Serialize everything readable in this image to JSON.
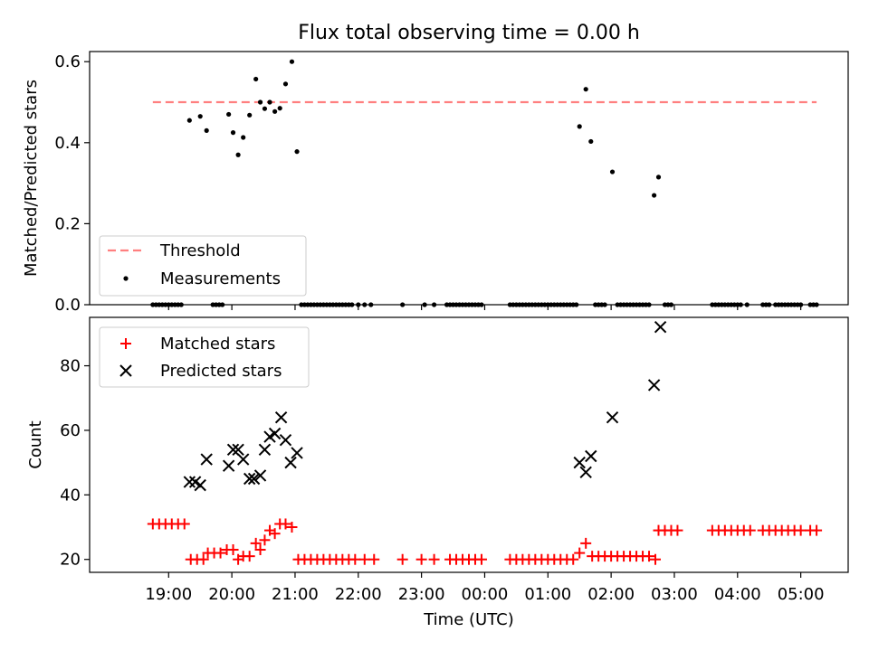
{
  "title": "Flux total observing time = 0.00 h",
  "chart_data": [
    {
      "type": "scatter",
      "ylabel": "Matched/Predicted stars",
      "xlabel": "",
      "x_unit": "hours since 18:00 UTC",
      "xlim": [
        17.75,
        29.75
      ],
      "ylim": [
        0.0,
        0.625
      ],
      "yticks": [
        0.0,
        0.2,
        0.4,
        0.6
      ],
      "ytick_labels": [
        "0.0",
        "0.2",
        "0.4",
        "0.6"
      ],
      "legend": {
        "position": "lower-left",
        "entries": [
          "Threshold",
          "Measurements"
        ]
      },
      "threshold": {
        "name": "Threshold",
        "value": 0.5,
        "x_range": [
          18.75,
          29.25
        ],
        "color": "#ff7f7f"
      },
      "series": [
        {
          "name": "Measurements",
          "color": "#000000",
          "points": [
            [
              18.75,
              0
            ],
            [
              18.8,
              0
            ],
            [
              18.85,
              0
            ],
            [
              18.9,
              0
            ],
            [
              18.95,
              0
            ],
            [
              19.0,
              0
            ],
            [
              19.05,
              0
            ],
            [
              19.1,
              0
            ],
            [
              19.15,
              0
            ],
            [
              19.2,
              0
            ],
            [
              19.33,
              0.455
            ],
            [
              19.5,
              0.465
            ],
            [
              19.6,
              0.43
            ],
            [
              19.7,
              0
            ],
            [
              19.75,
              0
            ],
            [
              19.8,
              0
            ],
            [
              19.85,
              0
            ],
            [
              19.95,
              0.47
            ],
            [
              20.02,
              0.425
            ],
            [
              20.1,
              0.37
            ],
            [
              20.18,
              0.413
            ],
            [
              20.28,
              0.468
            ],
            [
              20.38,
              0.557
            ],
            [
              20.45,
              0.5
            ],
            [
              20.52,
              0.484
            ],
            [
              20.6,
              0.5
            ],
            [
              20.68,
              0.477
            ],
            [
              20.76,
              0.485
            ],
            [
              20.85,
              0.545
            ],
            [
              20.95,
              0.6
            ],
            [
              21.03,
              0.378
            ],
            [
              21.1,
              0
            ],
            [
              21.15,
              0
            ],
            [
              21.2,
              0
            ],
            [
              21.25,
              0
            ],
            [
              21.3,
              0
            ],
            [
              21.35,
              0
            ],
            [
              21.4,
              0
            ],
            [
              21.45,
              0
            ],
            [
              21.5,
              0
            ],
            [
              21.55,
              0
            ],
            [
              21.6,
              0
            ],
            [
              21.65,
              0
            ],
            [
              21.7,
              0
            ],
            [
              21.75,
              0
            ],
            [
              21.8,
              0
            ],
            [
              21.85,
              0
            ],
            [
              21.9,
              0
            ],
            [
              22.0,
              0
            ],
            [
              22.1,
              0
            ],
            [
              22.2,
              0
            ],
            [
              22.7,
              0
            ],
            [
              23.05,
              0
            ],
            [
              23.2,
              0
            ],
            [
              23.4,
              0
            ],
            [
              23.45,
              0
            ],
            [
              23.5,
              0
            ],
            [
              23.55,
              0
            ],
            [
              23.6,
              0
            ],
            [
              23.65,
              0
            ],
            [
              23.7,
              0
            ],
            [
              23.75,
              0
            ],
            [
              23.8,
              0
            ],
            [
              23.85,
              0
            ],
            [
              23.9,
              0
            ],
            [
              23.95,
              0
            ],
            [
              24.4,
              0
            ],
            [
              24.45,
              0
            ],
            [
              24.5,
              0
            ],
            [
              24.55,
              0
            ],
            [
              24.6,
              0
            ],
            [
              24.65,
              0
            ],
            [
              24.7,
              0
            ],
            [
              24.75,
              0
            ],
            [
              24.8,
              0
            ],
            [
              24.85,
              0
            ],
            [
              24.9,
              0
            ],
            [
              24.95,
              0
            ],
            [
              25.0,
              0
            ],
            [
              25.05,
              0
            ],
            [
              25.1,
              0
            ],
            [
              25.15,
              0
            ],
            [
              25.2,
              0
            ],
            [
              25.25,
              0
            ],
            [
              25.3,
              0
            ],
            [
              25.35,
              0
            ],
            [
              25.4,
              0
            ],
            [
              25.45,
              0
            ],
            [
              25.5,
              0.44
            ],
            [
              25.6,
              0.532
            ],
            [
              25.68,
              0.403
            ],
            [
              25.75,
              0
            ],
            [
              25.8,
              0
            ],
            [
              25.85,
              0
            ],
            [
              25.9,
              0
            ],
            [
              26.02,
              0.328
            ],
            [
              26.1,
              0
            ],
            [
              26.15,
              0
            ],
            [
              26.2,
              0
            ],
            [
              26.25,
              0
            ],
            [
              26.3,
              0
            ],
            [
              26.35,
              0
            ],
            [
              26.4,
              0
            ],
            [
              26.45,
              0
            ],
            [
              26.5,
              0
            ],
            [
              26.55,
              0
            ],
            [
              26.6,
              0
            ],
            [
              26.68,
              0.27
            ],
            [
              26.75,
              0.315
            ],
            [
              26.85,
              0
            ],
            [
              26.9,
              0
            ],
            [
              26.95,
              0
            ],
            [
              27.6,
              0
            ],
            [
              27.65,
              0
            ],
            [
              27.7,
              0
            ],
            [
              27.75,
              0
            ],
            [
              27.8,
              0
            ],
            [
              27.85,
              0
            ],
            [
              27.9,
              0
            ],
            [
              27.95,
              0
            ],
            [
              28.0,
              0
            ],
            [
              28.05,
              0
            ],
            [
              28.15,
              0
            ],
            [
              28.4,
              0
            ],
            [
              28.45,
              0
            ],
            [
              28.5,
              0
            ],
            [
              28.6,
              0
            ],
            [
              28.65,
              0
            ],
            [
              28.7,
              0
            ],
            [
              28.75,
              0
            ],
            [
              28.8,
              0
            ],
            [
              28.85,
              0
            ],
            [
              28.9,
              0
            ],
            [
              28.95,
              0
            ],
            [
              29.0,
              0
            ],
            [
              29.15,
              0
            ],
            [
              29.2,
              0
            ],
            [
              29.25,
              0
            ]
          ]
        }
      ]
    },
    {
      "type": "scatter",
      "ylabel": "Count",
      "xlabel": "Time (UTC)",
      "x_unit": "hours since 18:00 UTC",
      "xlim": [
        17.75,
        29.75
      ],
      "ylim": [
        16,
        95
      ],
      "yticks": [
        20,
        40,
        60,
        80
      ],
      "ytick_labels": [
        "20",
        "40",
        "60",
        "80"
      ],
      "xticks": [
        19,
        20,
        21,
        22,
        23,
        24,
        25,
        26,
        27,
        28,
        29
      ],
      "xtick_labels": [
        "19:00",
        "20:00",
        "21:00",
        "22:00",
        "23:00",
        "00:00",
        "01:00",
        "02:00",
        "03:00",
        "04:00",
        "05:00"
      ],
      "legend": {
        "position": "top-left",
        "entries": [
          "Matched stars",
          "Predicted stars"
        ]
      },
      "series": [
        {
          "name": "Matched stars",
          "marker": "plus",
          "color": "#ff0000",
          "points": [
            [
              18.75,
              31
            ],
            [
              18.85,
              31
            ],
            [
              18.95,
              31
            ],
            [
              19.05,
              31
            ],
            [
              19.15,
              31
            ],
            [
              19.25,
              31
            ],
            [
              19.35,
              20
            ],
            [
              19.45,
              20
            ],
            [
              19.55,
              20
            ],
            [
              19.62,
              22
            ],
            [
              19.72,
              22
            ],
            [
              19.82,
              22
            ],
            [
              19.92,
              23
            ],
            [
              20.02,
              23
            ],
            [
              20.1,
              20
            ],
            [
              20.18,
              21
            ],
            [
              20.28,
              21
            ],
            [
              20.38,
              25
            ],
            [
              20.45,
              23
            ],
            [
              20.52,
              26
            ],
            [
              20.6,
              29
            ],
            [
              20.68,
              28
            ],
            [
              20.76,
              31
            ],
            [
              20.85,
              31
            ],
            [
              20.95,
              30
            ],
            [
              21.05,
              20
            ],
            [
              21.15,
              20
            ],
            [
              21.25,
              20
            ],
            [
              21.35,
              20
            ],
            [
              21.45,
              20
            ],
            [
              21.55,
              20
            ],
            [
              21.65,
              20
            ],
            [
              21.75,
              20
            ],
            [
              21.85,
              20
            ],
            [
              21.95,
              20
            ],
            [
              22.1,
              20
            ],
            [
              22.25,
              20
            ],
            [
              22.7,
              20
            ],
            [
              23.0,
              20
            ],
            [
              23.2,
              20
            ],
            [
              23.45,
              20
            ],
            [
              23.55,
              20
            ],
            [
              23.65,
              20
            ],
            [
              23.75,
              20
            ],
            [
              23.85,
              20
            ],
            [
              23.95,
              20
            ],
            [
              24.4,
              20
            ],
            [
              24.5,
              20
            ],
            [
              24.6,
              20
            ],
            [
              24.7,
              20
            ],
            [
              24.8,
              20
            ],
            [
              24.9,
              20
            ],
            [
              25.0,
              20
            ],
            [
              25.1,
              20
            ],
            [
              25.2,
              20
            ],
            [
              25.3,
              20
            ],
            [
              25.4,
              20
            ],
            [
              25.5,
              22
            ],
            [
              25.6,
              25
            ],
            [
              25.7,
              21
            ],
            [
              25.8,
              21
            ],
            [
              25.9,
              21
            ],
            [
              26.0,
              21
            ],
            [
              26.1,
              21
            ],
            [
              26.2,
              21
            ],
            [
              26.3,
              21
            ],
            [
              26.4,
              21
            ],
            [
              26.5,
              21
            ],
            [
              26.6,
              21
            ],
            [
              26.7,
              20
            ],
            [
              26.75,
              29
            ],
            [
              26.85,
              29
            ],
            [
              26.95,
              29
            ],
            [
              27.05,
              29
            ],
            [
              27.6,
              29
            ],
            [
              27.7,
              29
            ],
            [
              27.8,
              29
            ],
            [
              27.9,
              29
            ],
            [
              28.0,
              29
            ],
            [
              28.1,
              29
            ],
            [
              28.2,
              29
            ],
            [
              28.4,
              29
            ],
            [
              28.5,
              29
            ],
            [
              28.6,
              29
            ],
            [
              28.7,
              29
            ],
            [
              28.8,
              29
            ],
            [
              28.9,
              29
            ],
            [
              29.0,
              29
            ],
            [
              29.15,
              29
            ],
            [
              29.25,
              29
            ]
          ]
        },
        {
          "name": "Predicted stars",
          "marker": "x",
          "color": "#000000",
          "points": [
            [
              19.33,
              44
            ],
            [
              19.42,
              44
            ],
            [
              19.5,
              43
            ],
            [
              19.6,
              51
            ],
            [
              19.95,
              49
            ],
            [
              20.02,
              54
            ],
            [
              20.1,
              54
            ],
            [
              20.18,
              51
            ],
            [
              20.28,
              45
            ],
            [
              20.35,
              45
            ],
            [
              20.45,
              46
            ],
            [
              20.52,
              54
            ],
            [
              20.6,
              58
            ],
            [
              20.68,
              59
            ],
            [
              20.78,
              64
            ],
            [
              20.85,
              57
            ],
            [
              20.93,
              50
            ],
            [
              21.03,
              53
            ],
            [
              25.5,
              50
            ],
            [
              25.6,
              47
            ],
            [
              25.68,
              52
            ],
            [
              26.02,
              64
            ],
            [
              26.68,
              74
            ],
            [
              26.78,
              92
            ]
          ]
        }
      ]
    }
  ]
}
